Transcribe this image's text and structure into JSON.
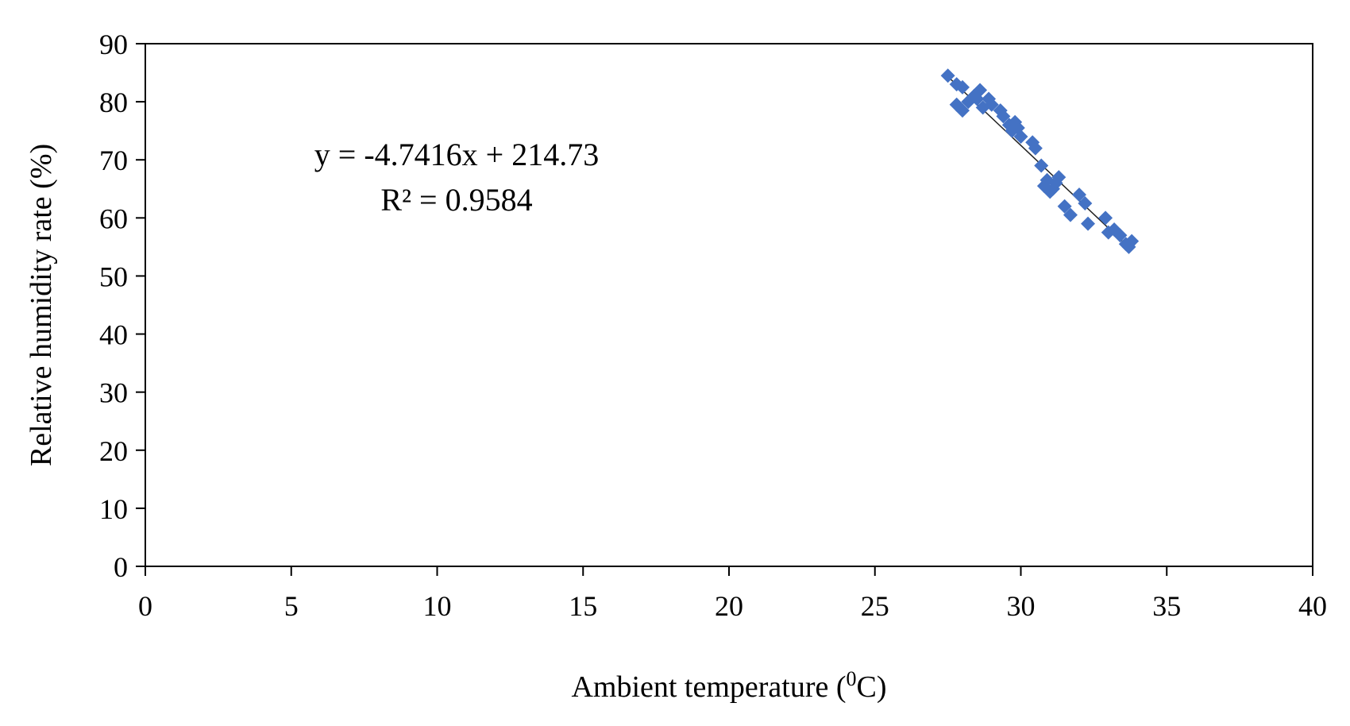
{
  "chart_data": {
    "type": "scatter",
    "xlabel": "Ambient temperature (",
    "xlabel_sup": "0",
    "xlabel_tail": "C)",
    "ylabel": "Relative humidity rate (%)",
    "xlim": [
      0,
      40
    ],
    "ylim": [
      0,
      90
    ],
    "x_ticks": [
      "0",
      "5",
      "10",
      "15",
      "20",
      "25",
      "30",
      "35",
      "40"
    ],
    "y_ticks": [
      "0",
      "10",
      "20",
      "30",
      "40",
      "50",
      "60",
      "70",
      "80",
      "90"
    ],
    "grid": false,
    "legend": "none",
    "annotations": {
      "equation": "y = -4.7416x + 214.73",
      "r_squared": "R² = 0.9584"
    },
    "trendline": {
      "slope": -4.7416,
      "intercept": 214.73,
      "x_range": [
        27.5,
        33.8
      ]
    },
    "marker_color": "#4472C4",
    "series": [
      {
        "marker": "diamond",
        "points": [
          [
            27.5,
            84.5
          ],
          [
            27.8,
            83.0
          ],
          [
            28.0,
            82.5
          ],
          [
            27.8,
            79.5
          ],
          [
            28.0,
            78.5
          ],
          [
            28.2,
            80.0
          ],
          [
            28.4,
            81.0
          ],
          [
            28.5,
            80.5
          ],
          [
            28.6,
            82.0
          ],
          [
            28.7,
            79.0
          ],
          [
            28.9,
            80.5
          ],
          [
            29.0,
            79.5
          ],
          [
            29.3,
            78.5
          ],
          [
            29.4,
            77.5
          ],
          [
            29.6,
            76.0
          ],
          [
            29.7,
            75.0
          ],
          [
            29.8,
            76.5
          ],
          [
            29.9,
            75.5
          ],
          [
            30.0,
            74.0
          ],
          [
            30.4,
            73.0
          ],
          [
            30.5,
            72.0
          ],
          [
            30.7,
            69.0
          ],
          [
            30.8,
            65.5
          ],
          [
            30.9,
            66.5
          ],
          [
            31.0,
            64.5
          ],
          [
            31.1,
            65.0
          ],
          [
            31.2,
            66.0
          ],
          [
            31.3,
            67.0
          ],
          [
            31.5,
            62.0
          ],
          [
            31.7,
            60.5
          ],
          [
            32.0,
            64.0
          ],
          [
            32.2,
            62.5
          ],
          [
            32.3,
            59.0
          ],
          [
            32.9,
            60.0
          ],
          [
            33.0,
            57.5
          ],
          [
            33.2,
            58.0
          ],
          [
            33.4,
            57.0
          ],
          [
            33.6,
            55.5
          ],
          [
            33.7,
            55.0
          ],
          [
            33.8,
            56.0
          ]
        ]
      }
    ]
  }
}
